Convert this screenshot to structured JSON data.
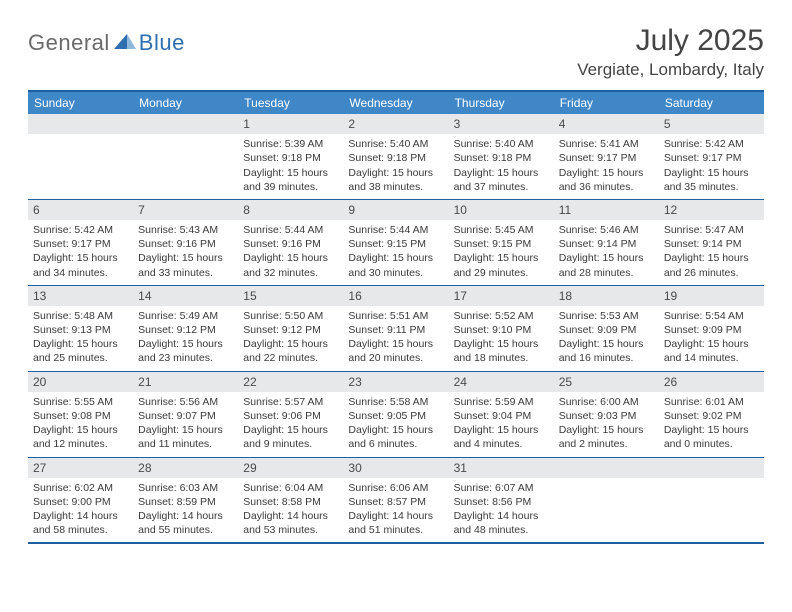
{
  "brand": {
    "part1": "General",
    "part2": "Blue"
  },
  "title": "July 2025",
  "location": "Vergiate, Lombardy, Italy",
  "colors": {
    "header_bg": "#3f87c7",
    "border": "#1f5f9e",
    "daynum_bg": "#e7e8ea",
    "text": "#3a3a3a",
    "title": "#444444",
    "logo_gray": "#6a6a6a",
    "logo_blue": "#2f6fb0"
  },
  "dows": [
    "Sunday",
    "Monday",
    "Tuesday",
    "Wednesday",
    "Thursday",
    "Friday",
    "Saturday"
  ],
  "weeks": [
    [
      {
        "n": "",
        "sr": "",
        "ss": "",
        "dl": ""
      },
      {
        "n": "",
        "sr": "",
        "ss": "",
        "dl": ""
      },
      {
        "n": "1",
        "sr": "5:39 AM",
        "ss": "9:18 PM",
        "dl": "15 hours and 39 minutes."
      },
      {
        "n": "2",
        "sr": "5:40 AM",
        "ss": "9:18 PM",
        "dl": "15 hours and 38 minutes."
      },
      {
        "n": "3",
        "sr": "5:40 AM",
        "ss": "9:18 PM",
        "dl": "15 hours and 37 minutes."
      },
      {
        "n": "4",
        "sr": "5:41 AM",
        "ss": "9:17 PM",
        "dl": "15 hours and 36 minutes."
      },
      {
        "n": "5",
        "sr": "5:42 AM",
        "ss": "9:17 PM",
        "dl": "15 hours and 35 minutes."
      }
    ],
    [
      {
        "n": "6",
        "sr": "5:42 AM",
        "ss": "9:17 PM",
        "dl": "15 hours and 34 minutes."
      },
      {
        "n": "7",
        "sr": "5:43 AM",
        "ss": "9:16 PM",
        "dl": "15 hours and 33 minutes."
      },
      {
        "n": "8",
        "sr": "5:44 AM",
        "ss": "9:16 PM",
        "dl": "15 hours and 32 minutes."
      },
      {
        "n": "9",
        "sr": "5:44 AM",
        "ss": "9:15 PM",
        "dl": "15 hours and 30 minutes."
      },
      {
        "n": "10",
        "sr": "5:45 AM",
        "ss": "9:15 PM",
        "dl": "15 hours and 29 minutes."
      },
      {
        "n": "11",
        "sr": "5:46 AM",
        "ss": "9:14 PM",
        "dl": "15 hours and 28 minutes."
      },
      {
        "n": "12",
        "sr": "5:47 AM",
        "ss": "9:14 PM",
        "dl": "15 hours and 26 minutes."
      }
    ],
    [
      {
        "n": "13",
        "sr": "5:48 AM",
        "ss": "9:13 PM",
        "dl": "15 hours and 25 minutes."
      },
      {
        "n": "14",
        "sr": "5:49 AM",
        "ss": "9:12 PM",
        "dl": "15 hours and 23 minutes."
      },
      {
        "n": "15",
        "sr": "5:50 AM",
        "ss": "9:12 PM",
        "dl": "15 hours and 22 minutes."
      },
      {
        "n": "16",
        "sr": "5:51 AM",
        "ss": "9:11 PM",
        "dl": "15 hours and 20 minutes."
      },
      {
        "n": "17",
        "sr": "5:52 AM",
        "ss": "9:10 PM",
        "dl": "15 hours and 18 minutes."
      },
      {
        "n": "18",
        "sr": "5:53 AM",
        "ss": "9:09 PM",
        "dl": "15 hours and 16 minutes."
      },
      {
        "n": "19",
        "sr": "5:54 AM",
        "ss": "9:09 PM",
        "dl": "15 hours and 14 minutes."
      }
    ],
    [
      {
        "n": "20",
        "sr": "5:55 AM",
        "ss": "9:08 PM",
        "dl": "15 hours and 12 minutes."
      },
      {
        "n": "21",
        "sr": "5:56 AM",
        "ss": "9:07 PM",
        "dl": "15 hours and 11 minutes."
      },
      {
        "n": "22",
        "sr": "5:57 AM",
        "ss": "9:06 PM",
        "dl": "15 hours and 9 minutes."
      },
      {
        "n": "23",
        "sr": "5:58 AM",
        "ss": "9:05 PM",
        "dl": "15 hours and 6 minutes."
      },
      {
        "n": "24",
        "sr": "5:59 AM",
        "ss": "9:04 PM",
        "dl": "15 hours and 4 minutes."
      },
      {
        "n": "25",
        "sr": "6:00 AM",
        "ss": "9:03 PM",
        "dl": "15 hours and 2 minutes."
      },
      {
        "n": "26",
        "sr": "6:01 AM",
        "ss": "9:02 PM",
        "dl": "15 hours and 0 minutes."
      }
    ],
    [
      {
        "n": "27",
        "sr": "6:02 AM",
        "ss": "9:00 PM",
        "dl": "14 hours and 58 minutes."
      },
      {
        "n": "28",
        "sr": "6:03 AM",
        "ss": "8:59 PM",
        "dl": "14 hours and 55 minutes."
      },
      {
        "n": "29",
        "sr": "6:04 AM",
        "ss": "8:58 PM",
        "dl": "14 hours and 53 minutes."
      },
      {
        "n": "30",
        "sr": "6:06 AM",
        "ss": "8:57 PM",
        "dl": "14 hours and 51 minutes."
      },
      {
        "n": "31",
        "sr": "6:07 AM",
        "ss": "8:56 PM",
        "dl": "14 hours and 48 minutes."
      },
      {
        "n": "",
        "sr": "",
        "ss": "",
        "dl": ""
      },
      {
        "n": "",
        "sr": "",
        "ss": "",
        "dl": ""
      }
    ]
  ],
  "labels": {
    "sunrise": "Sunrise: ",
    "sunset": "Sunset: ",
    "daylight": "Daylight: "
  }
}
